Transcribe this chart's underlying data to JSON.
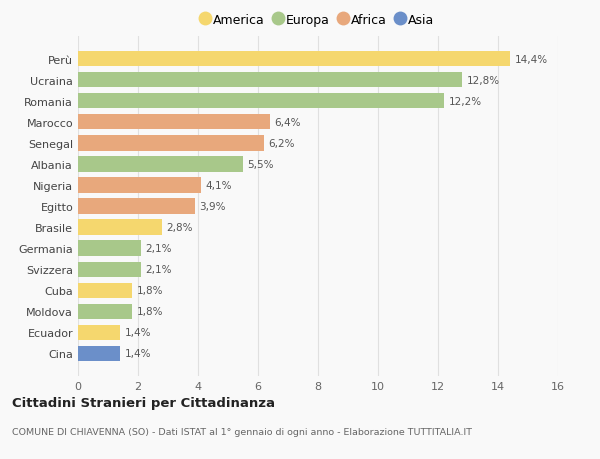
{
  "countries": [
    "Cina",
    "Ecuador",
    "Moldova",
    "Cuba",
    "Svizzera",
    "Germania",
    "Brasile",
    "Egitto",
    "Nigeria",
    "Albania",
    "Senegal",
    "Marocco",
    "Romania",
    "Ucraina",
    "Perù"
  ],
  "values": [
    1.4,
    1.4,
    1.8,
    1.8,
    2.1,
    2.1,
    2.8,
    3.9,
    4.1,
    5.5,
    6.2,
    6.4,
    12.2,
    12.8,
    14.4
  ],
  "labels": [
    "1,4%",
    "1,4%",
    "1,8%",
    "1,8%",
    "2,1%",
    "2,1%",
    "2,8%",
    "3,9%",
    "4,1%",
    "5,5%",
    "6,2%",
    "6,4%",
    "12,2%",
    "12,8%",
    "14,4%"
  ],
  "continents": [
    "Asia",
    "America",
    "Europa",
    "America",
    "Europa",
    "Europa",
    "America",
    "Africa",
    "Africa",
    "Europa",
    "Africa",
    "Africa",
    "Europa",
    "Europa",
    "America"
  ],
  "colors": {
    "America": "#F5D76E",
    "Europa": "#A8C88A",
    "Africa": "#E8A87C",
    "Asia": "#6B8FC9"
  },
  "legend_order": [
    "America",
    "Europa",
    "Africa",
    "Asia"
  ],
  "legend_colors": {
    "America": "#F5D76E",
    "Europa": "#A8C88A",
    "Africa": "#E8A87C",
    "Asia": "#6B8FC9"
  },
  "xlim": [
    0,
    16
  ],
  "xticks": [
    0,
    2,
    4,
    6,
    8,
    10,
    12,
    14,
    16
  ],
  "title": "Cittadini Stranieri per Cittadinanza",
  "subtitle": "COMUNE DI CHIAVENNA (SO) - Dati ISTAT al 1° gennaio di ogni anno - Elaborazione TUTTITALIA.IT",
  "background_color": "#f9f9f9",
  "grid_color": "#e0e0e0"
}
